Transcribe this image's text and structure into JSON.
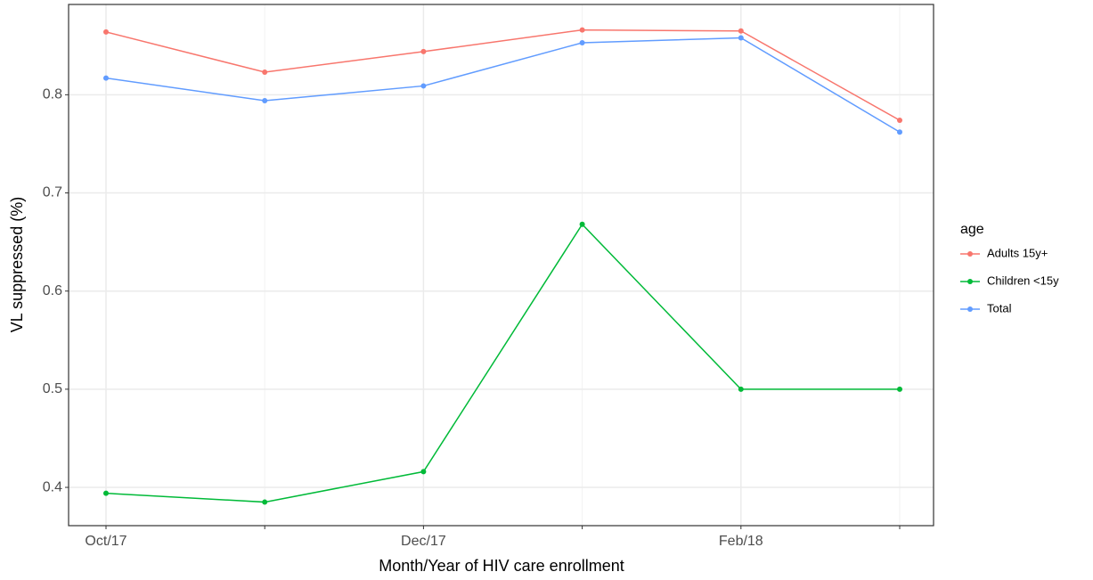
{
  "chart_data": {
    "type": "line",
    "x_label": "Month/Year of HIV care enrollment",
    "y_label": "VL suppressed (%)",
    "categories": [
      "Oct/17",
      null,
      "Dec/17",
      null,
      "Feb/18",
      null
    ],
    "series": [
      {
        "name": "Adults 15y+",
        "color": "#F8766D",
        "values": [
          0.864,
          0.823,
          0.844,
          0.866,
          0.865,
          0.774
        ]
      },
      {
        "name": "Children <15y",
        "color": "#00BA38",
        "values": [
          0.394,
          0.385,
          0.416,
          0.668,
          0.5,
          0.5
        ]
      },
      {
        "name": "Total",
        "color": "#619CFF",
        "values": [
          0.817,
          0.794,
          0.809,
          0.853,
          0.858,
          0.762
        ]
      }
    ],
    "legend_title": "age",
    "legend_position": "right",
    "ylim": [
      0.361,
      0.892
    ],
    "yticks": [
      0.4,
      0.5,
      0.6,
      0.7,
      0.8
    ],
    "grid": true
  }
}
